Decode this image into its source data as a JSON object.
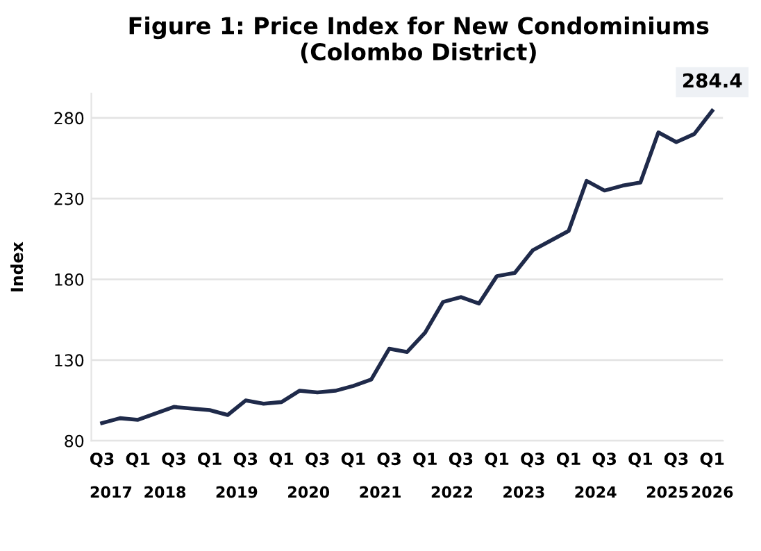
{
  "chart_data": {
    "type": "line",
    "title": "Figure 1: Price Index for New Condominiums\n(Colombo District)",
    "ylabel": "Index",
    "categories": [
      "Q3",
      null,
      "Q1",
      null,
      "Q3",
      null,
      "Q1",
      null,
      "Q3",
      null,
      "Q1",
      null,
      "Q3",
      null,
      "Q1",
      null,
      "Q3",
      null,
      "Q1",
      null,
      "Q3",
      null,
      "Q1",
      null,
      "Q3",
      null,
      "Q1",
      null,
      "Q3",
      null,
      "Q1",
      null,
      "Q3",
      null,
      "Q1"
    ],
    "series": [
      {
        "color": "#1f2a4a",
        "values": [
          91,
          94,
          93,
          97,
          101,
          100,
          99,
          96,
          105,
          103,
          104,
          111,
          110,
          111,
          114,
          118,
          137,
          135,
          147,
          166,
          169,
          165,
          182,
          184,
          198,
          204,
          210,
          241,
          235,
          238,
          240,
          271,
          265,
          270,
          284.4
        ],
        "value_labels": [
          null,
          null,
          null,
          null,
          null,
          null,
          null,
          null,
          null,
          null,
          null,
          null,
          null,
          null,
          null,
          null,
          null,
          null,
          null,
          null,
          null,
          null,
          null,
          null,
          null,
          null,
          null,
          null,
          null,
          null,
          null,
          null,
          null,
          null,
          "284.4"
        ]
      }
    ],
    "annotations": [
      "2017",
      "2018",
      "2019",
      "2020",
      "2021",
      "2022",
      "2023",
      "2024",
      "2025",
      "2026"
    ],
    "ylim": [
      80,
      295
    ],
    "yticks": [
      80,
      130,
      180,
      230,
      280
    ],
    "grid": "y",
    "legend": false,
    "marker": "none",
    "line_style": "solid"
  }
}
